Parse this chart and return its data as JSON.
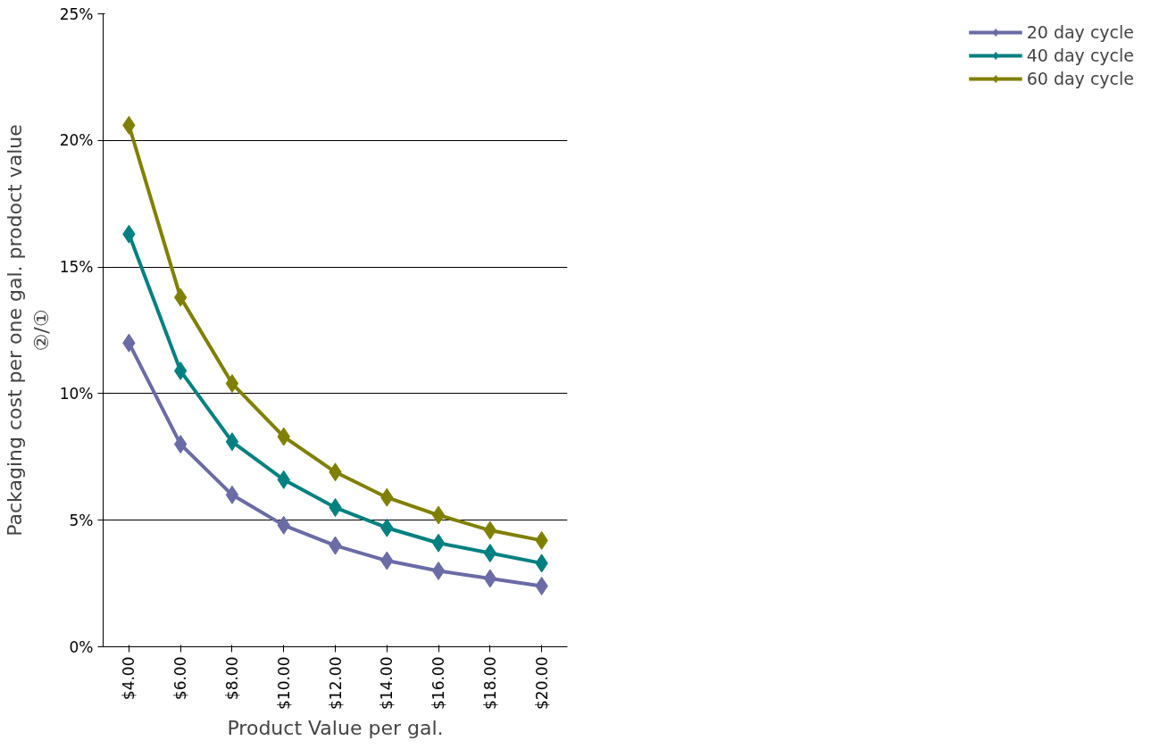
{
  "chart_data": {
    "type": "line",
    "xlabel": "Product Value per gal.",
    "ylabel": "Packaging cost per one gal. prodoct value\n②/①",
    "categories": [
      "$4.00",
      "$6.00",
      "$8.00",
      "$10.00",
      "$12.00",
      "$14.00",
      "$16.00",
      "$18.00",
      "$20.00"
    ],
    "series": [
      {
        "name": "20 day cycle",
        "color": "#6b6ba6",
        "values": [
          12.0,
          8.0,
          6.0,
          4.8,
          4.0,
          3.4,
          3.0,
          2.7,
          2.4
        ]
      },
      {
        "name": "40 day cycle",
        "color": "#008080",
        "values": [
          16.3,
          10.9,
          8.1,
          6.6,
          5.5,
          4.7,
          4.1,
          3.7,
          3.3
        ]
      },
      {
        "name": "60 day cycle",
        "color": "#808000",
        "values": [
          20.6,
          13.8,
          10.4,
          8.3,
          6.9,
          5.9,
          5.2,
          4.6,
          4.2
        ]
      }
    ],
    "ylim": [
      0,
      25
    ],
    "yticks": [
      {
        "value": 0,
        "label": "0%"
      },
      {
        "value": 5,
        "label": "5%"
      },
      {
        "value": 10,
        "label": "10%"
      },
      {
        "value": 15,
        "label": "15%"
      },
      {
        "value": 20,
        "label": "20%"
      },
      {
        "value": 25,
        "label": "25%"
      }
    ],
    "grid": "y",
    "legend": "right",
    "marker": "diamond",
    "line_style": "solid"
  }
}
